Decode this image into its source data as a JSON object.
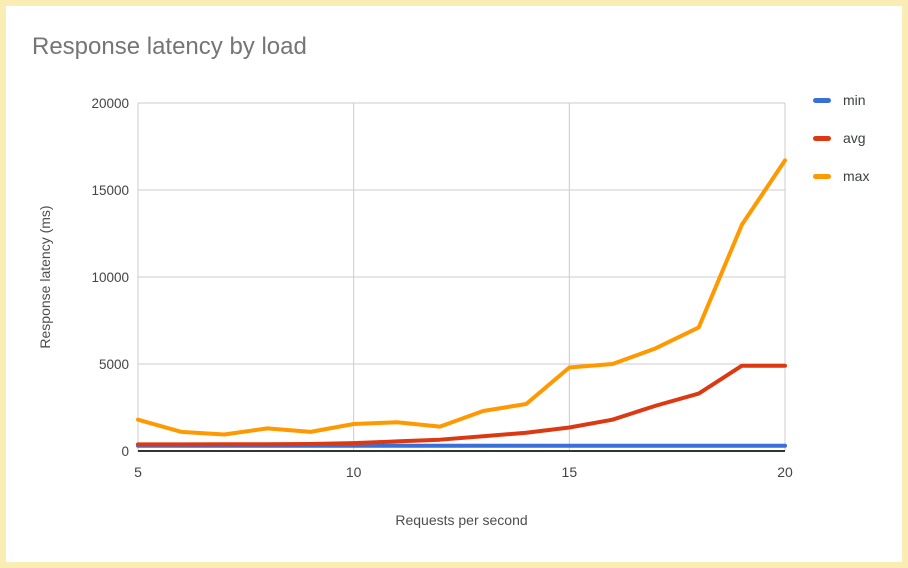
{
  "page": {
    "border_color": "#faedb3",
    "background": "#ffffff"
  },
  "colors": {
    "grid": "#cccccc",
    "baseline": "#333333",
    "tick_text": "#444444",
    "axis_title_text": "#4d4d4d",
    "title_text": "#757575",
    "legend_text": "#3c4043"
  },
  "chart_data": {
    "type": "line",
    "title": "Response latency by load",
    "xlabel": "Requests per second",
    "ylabel": "Response latency (ms)",
    "x": [
      5,
      6,
      7,
      8,
      9,
      10,
      11,
      12,
      13,
      14,
      15,
      16,
      17,
      18,
      19,
      20
    ],
    "series": [
      {
        "name": "min",
        "color": "#3b6fd8",
        "values": [
          300,
          300,
          300,
          300,
          300,
          300,
          300,
          300,
          300,
          300,
          300,
          300,
          300,
          300,
          300,
          300
        ]
      },
      {
        "name": "avg",
        "color": "#dc3912",
        "values": [
          380,
          380,
          385,
          390,
          400,
          450,
          550,
          650,
          850,
          1050,
          1350,
          1800,
          2600,
          3300,
          4900,
          4900
        ]
      },
      {
        "name": "max",
        "color": "#ff9900",
        "values": [
          1800,
          1100,
          950,
          1300,
          1100,
          1550,
          1650,
          1400,
          2300,
          2700,
          4800,
          5000,
          5900,
          7100,
          13000,
          16700
        ]
      }
    ],
    "xlim": [
      5,
      20
    ],
    "ylim": [
      0,
      20000
    ],
    "xticks": [
      5,
      10,
      15,
      20
    ],
    "yticks": [
      0,
      5000,
      10000,
      15000,
      20000
    ],
    "grid": true,
    "legend_position": "right"
  }
}
